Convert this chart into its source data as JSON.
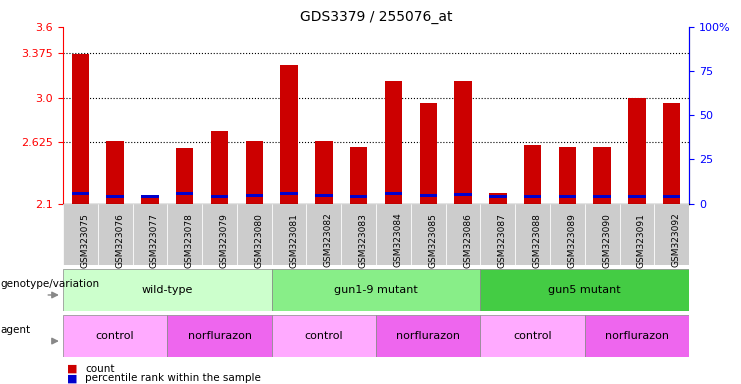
{
  "title": "GDS3379 / 255076_at",
  "categories": [
    "GSM323075",
    "GSM323076",
    "GSM323077",
    "GSM323078",
    "GSM323079",
    "GSM323080",
    "GSM323081",
    "GSM323082",
    "GSM323083",
    "GSM323084",
    "GSM323085",
    "GSM323086",
    "GSM323087",
    "GSM323088",
    "GSM323089",
    "GSM323090",
    "GSM323091",
    "GSM323092"
  ],
  "red_values": [
    3.37,
    2.63,
    2.17,
    2.57,
    2.72,
    2.63,
    3.28,
    2.63,
    2.58,
    3.14,
    2.95,
    3.14,
    2.19,
    2.6,
    2.58,
    2.58,
    3.0,
    2.95
  ],
  "blue_heights": [
    0.025,
    0.025,
    0.025,
    0.025,
    0.025,
    0.025,
    0.025,
    0.025,
    0.025,
    0.025,
    0.025,
    0.025,
    0.025,
    0.025,
    0.025,
    0.025,
    0.025,
    0.025
  ],
  "blue_bottoms": [
    2.175,
    2.145,
    2.145,
    2.175,
    2.145,
    2.155,
    2.175,
    2.155,
    2.145,
    2.175,
    2.155,
    2.165,
    2.145,
    2.145,
    2.145,
    2.145,
    2.145,
    2.145
  ],
  "ymin": 2.1,
  "ymax": 3.6,
  "yticks_left": [
    2.1,
    2.625,
    3.0,
    3.375,
    3.6
  ],
  "yticks_right_vals": [
    0,
    25,
    50,
    75,
    100
  ],
  "yticks_right_labels": [
    "0",
    "25",
    "50",
    "75",
    "100%"
  ],
  "grid_lines": [
    2.625,
    3.0,
    3.375
  ],
  "bar_color_red": "#cc0000",
  "bar_color_blue": "#0000cc",
  "bar_width": 0.5,
  "genotype_groups": [
    {
      "label": "wild-type",
      "start": 0,
      "end": 6,
      "color": "#ccffcc"
    },
    {
      "label": "gun1-9 mutant",
      "start": 6,
      "end": 12,
      "color": "#88ee88"
    },
    {
      "label": "gun5 mutant",
      "start": 12,
      "end": 18,
      "color": "#44cc44"
    }
  ],
  "agent_groups": [
    {
      "label": "control",
      "start": 0,
      "end": 3,
      "color": "#ffaaff"
    },
    {
      "label": "norflurazon",
      "start": 3,
      "end": 6,
      "color": "#ee66ee"
    },
    {
      "label": "control",
      "start": 6,
      "end": 9,
      "color": "#ffaaff"
    },
    {
      "label": "norflurazon",
      "start": 9,
      "end": 12,
      "color": "#ee66ee"
    },
    {
      "label": "control",
      "start": 12,
      "end": 15,
      "color": "#ffaaff"
    },
    {
      "label": "norflurazon",
      "start": 15,
      "end": 18,
      "color": "#ee66ee"
    }
  ],
  "legend_count_color": "#cc0000",
  "legend_percentile_color": "#0000cc",
  "bg_color": "#ffffff",
  "plot_bg_color": "#ffffff",
  "xtick_bg": "#cccccc"
}
